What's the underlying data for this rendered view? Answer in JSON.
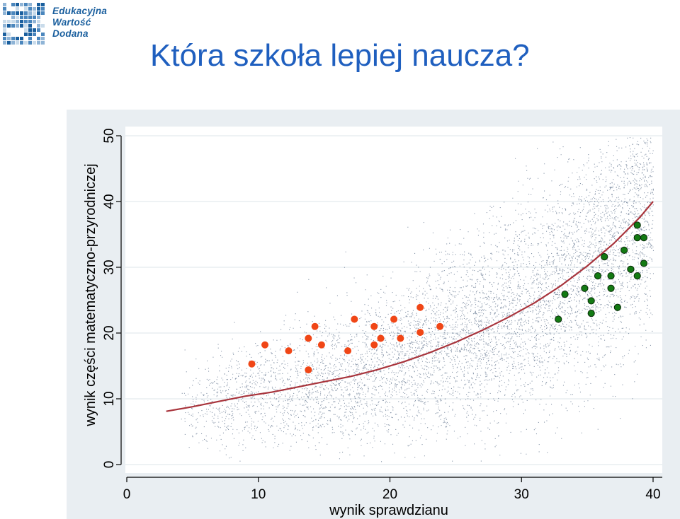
{
  "logo": {
    "lines": [
      "Edukacyjna",
      "Wartość",
      "Dodana"
    ],
    "color": "#1a5f9e"
  },
  "title": "Która szkoła lepiej naucza?",
  "colors": {
    "title": "#1f5fbf",
    "frame": "#e9eef2",
    "plot_bg": "#ffffff",
    "grid": "#e3e9ee",
    "scatter": "#2a4466",
    "trend": "#a8343c",
    "low_schools": "#f04616",
    "high_schools": "#137a13"
  },
  "chart_data": {
    "type": "scatter",
    "xlabel": "wynik sprawdzianu",
    "ylabel": "wynik części matematyczno-przyrodniczej",
    "xlim": [
      0,
      40
    ],
    "ylim": [
      0,
      50
    ],
    "xticks": [
      "0",
      "10",
      "20",
      "30",
      "40"
    ],
    "yticks": [
      "0",
      "10",
      "20",
      "30",
      "40",
      "50"
    ],
    "grid": true,
    "legend": "none",
    "background_scatter": {
      "description_points": "dense cloud of individual student results",
      "x_range": [
        3,
        40
      ],
      "y_range": [
        0,
        50
      ]
    },
    "trend_line": {
      "x": [
        3,
        5,
        7,
        9,
        11,
        13,
        15,
        17,
        19,
        21,
        23,
        25,
        27,
        29,
        31,
        33,
        35,
        37,
        39,
        40
      ],
      "y": [
        8.1,
        8.8,
        9.6,
        10.4,
        11.0,
        11.8,
        12.6,
        13.4,
        14.4,
        15.6,
        17.0,
        18.6,
        20.4,
        22.4,
        24.6,
        27.2,
        30.2,
        33.6,
        37.6,
        40.0
      ]
    },
    "series": [
      {
        "points": [
          [
            9.5,
            15.3
          ],
          [
            10.5,
            18.2
          ],
          [
            12.3,
            17.3
          ],
          [
            13.8,
            14.4
          ],
          [
            13.8,
            19.2
          ],
          [
            14.3,
            21.0
          ],
          [
            14.8,
            18.2
          ],
          [
            16.8,
            17.3
          ],
          [
            17.3,
            22.1
          ],
          [
            18.8,
            18.2
          ],
          [
            18.8,
            21.0
          ],
          [
            19.3,
            19.2
          ],
          [
            20.3,
            22.1
          ],
          [
            20.8,
            19.2
          ],
          [
            22.3,
            20.1
          ],
          [
            22.3,
            23.9
          ],
          [
            23.8,
            21.0
          ]
        ]
      },
      {
        "points": [
          [
            32.8,
            22.1
          ],
          [
            33.3,
            25.9
          ],
          [
            34.8,
            26.8
          ],
          [
            35.3,
            23.0
          ],
          [
            35.3,
            24.9
          ],
          [
            35.8,
            28.7
          ],
          [
            36.3,
            31.6
          ],
          [
            36.8,
            26.8
          ],
          [
            36.8,
            28.7
          ],
          [
            37.3,
            23.9
          ],
          [
            37.8,
            32.6
          ],
          [
            38.3,
            29.7
          ],
          [
            38.8,
            36.4
          ],
          [
            38.8,
            34.5
          ],
          [
            38.8,
            28.7
          ],
          [
            39.3,
            34.5
          ],
          [
            39.3,
            30.6
          ]
        ]
      }
    ]
  }
}
